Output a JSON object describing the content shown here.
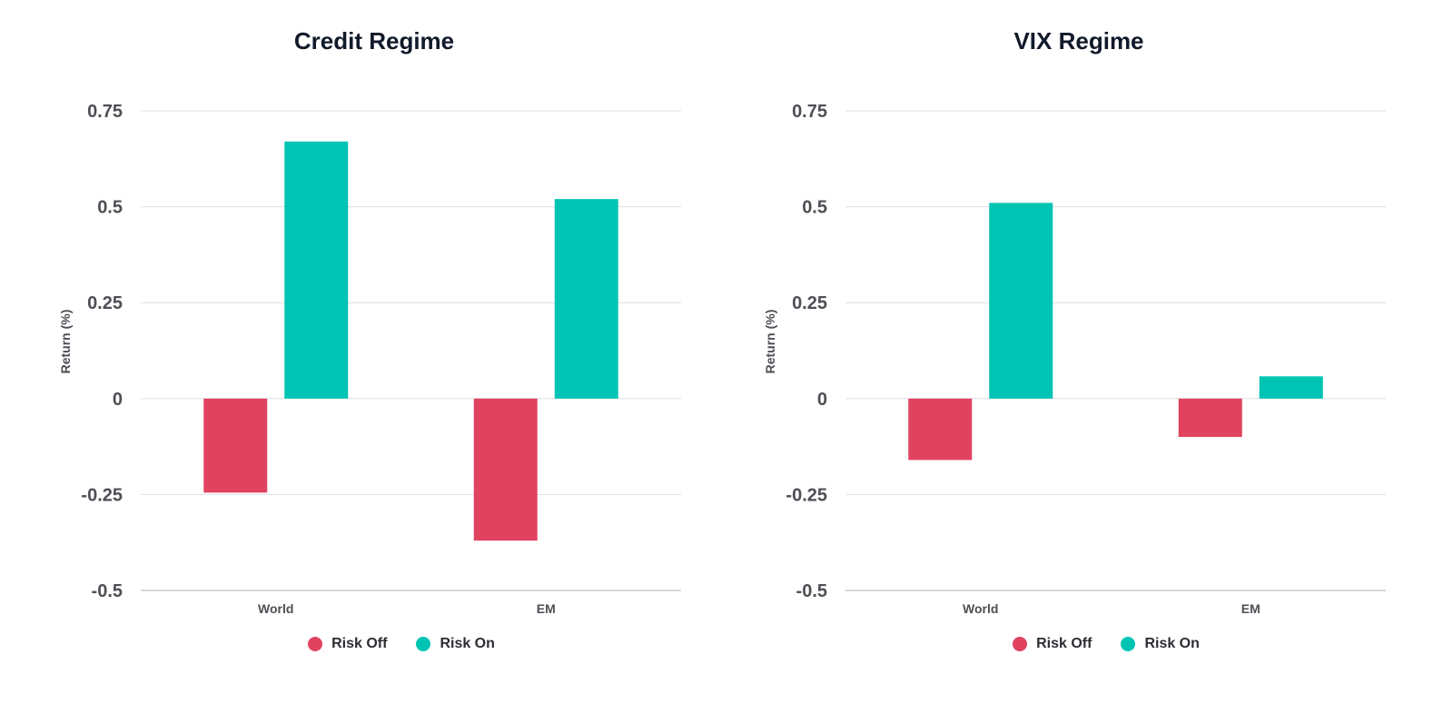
{
  "colors": {
    "risk_off": "#e0435f",
    "risk_on": "#00c4b3",
    "grid": "#dcdee2",
    "axis": "#c8cbd0"
  },
  "chart_data": [
    {
      "type": "bar",
      "title": "Credit Regime",
      "xlabel": "",
      "ylabel": "Return (%)",
      "categories": [
        "World",
        "EM"
      ],
      "ylim": [
        -0.5,
        0.75
      ],
      "yticks": [
        0.75,
        0.5,
        0.25,
        0,
        -0.25,
        -0.5
      ],
      "ytick_labels": [
        "0.75",
        "0.5",
        "0.25",
        "0",
        "-0.25",
        "-0.5"
      ],
      "grid": true,
      "legend_position": "bottom",
      "series": [
        {
          "name": "Risk Off",
          "values": [
            -0.245,
            -0.37
          ],
          "color": "#e0435f"
        },
        {
          "name": "Risk On",
          "values": [
            0.67,
            0.52
          ],
          "color": "#00c4b3"
        }
      ]
    },
    {
      "type": "bar",
      "title": "VIX Regime",
      "xlabel": "",
      "ylabel": "Return (%)",
      "categories": [
        "World",
        "EM"
      ],
      "ylim": [
        -0.5,
        0.75
      ],
      "yticks": [
        0.75,
        0.5,
        0.25,
        0,
        -0.25,
        -0.5
      ],
      "ytick_labels": [
        "0.75",
        "0.5",
        "0.25",
        "0",
        "-0.25",
        "-0.5"
      ],
      "grid": true,
      "legend_position": "bottom",
      "series": [
        {
          "name": "Risk Off",
          "values": [
            -0.16,
            -0.1
          ],
          "color": "#e0435f"
        },
        {
          "name": "Risk On",
          "values": [
            0.51,
            0.058
          ],
          "color": "#00c4b3"
        }
      ]
    }
  ]
}
